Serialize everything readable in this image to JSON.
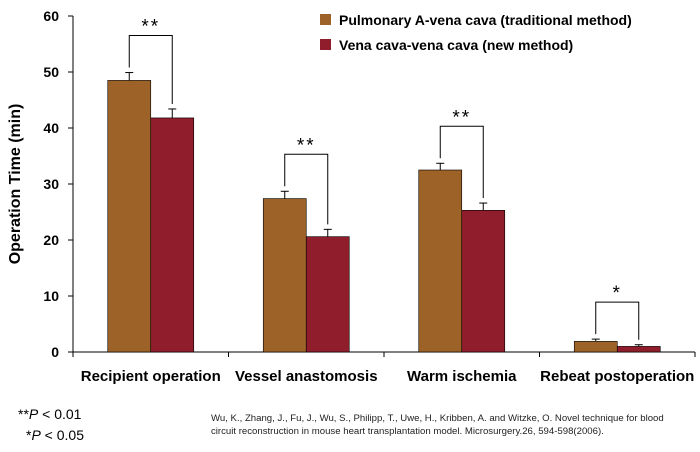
{
  "chart_data": {
    "type": "bar",
    "title": "",
    "xlabel": "",
    "ylabel": "Operation Time (min)",
    "ylim": [
      0,
      60
    ],
    "yticks": [
      0,
      10,
      20,
      30,
      40,
      50,
      60
    ],
    "categories": [
      "Recipient operation",
      "Vessel anastomosis",
      "Warm ischemia",
      "Rebeat postoperation"
    ],
    "series": [
      {
        "name": "Pulmonary A-vena cava (traditional method)",
        "color": "#9C6227",
        "values": [
          48.5,
          27.4,
          32.5,
          1.9
        ],
        "errors": [
          1.4,
          1.3,
          1.2,
          0.4
        ]
      },
      {
        "name": "Vena cava-vena cava (new method)",
        "color": "#8F1D2B",
        "values": [
          41.8,
          20.6,
          25.3,
          1.0
        ],
        "errors": [
          1.6,
          1.3,
          1.3,
          0.3
        ]
      }
    ],
    "significance": [
      "**",
      "**",
      "**",
      "*"
    ],
    "legend_position": "top-right",
    "grid": false
  },
  "notes": {
    "double_star": "**",
    "double_p": "P",
    "double_rest": " < 0.01",
    "single_star": "*",
    "single_p": "P",
    "single_rest": " < 0.05"
  },
  "citation": "Wu, K., Zhang, J., Fu, J., Wu, S., Philipp, T., Uwe, H., Kribben, A. and Witzke, O. Novel technique for blood circuit reconstruction in mouse heart transplantation model. Microsurgery.26, 594-598(2006)."
}
